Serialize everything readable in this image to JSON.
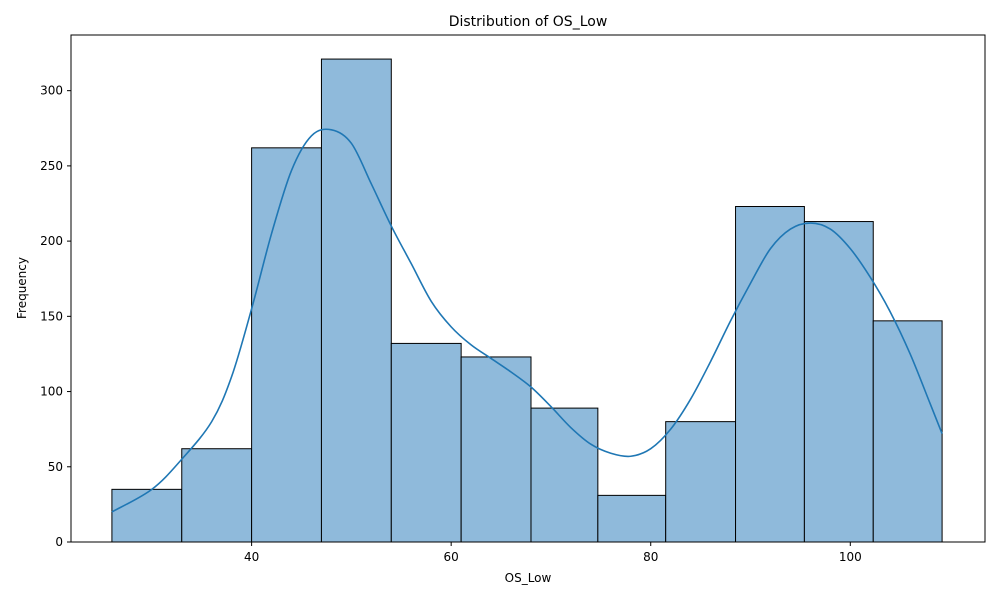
{
  "chart_data": {
    "type": "bar",
    "title": "Distribution of OS_Low",
    "xlabel": "OS_Low",
    "ylabel": "Frequency",
    "xlim": [
      21.9,
      113.5
    ],
    "ylim": [
      0,
      337
    ],
    "xticks": [
      40,
      60,
      80,
      100
    ],
    "yticks": [
      0,
      50,
      100,
      150,
      200,
      250,
      300
    ],
    "bin_edges": [
      26,
      33,
      40,
      47,
      54,
      61,
      68,
      74.7,
      81.5,
      88.5,
      95.4,
      102.3,
      109.2
    ],
    "values": [
      35,
      62,
      262,
      321,
      132,
      123,
      89,
      31,
      80,
      223,
      213,
      147
    ],
    "bar_color": "#8fbadb",
    "bar_edge_color": "#000000",
    "kde": {
      "color": "#1f77b4",
      "x": [
        26,
        30,
        33,
        36,
        38,
        40,
        42,
        44,
        46,
        48,
        50,
        52,
        54,
        56,
        58,
        60,
        62,
        64,
        66,
        68,
        70,
        72,
        74,
        76,
        78,
        80,
        82,
        84,
        86,
        88,
        90,
        92,
        94,
        96,
        98,
        100,
        102,
        104,
        106,
        108,
        109.2
      ],
      "y": [
        20,
        35,
        55,
        80,
        110,
        155,
        205,
        247,
        270,
        274,
        265,
        238,
        210,
        185,
        160,
        143,
        131,
        122,
        113,
        103,
        90,
        76,
        65,
        59,
        57,
        62,
        75,
        95,
        120,
        147,
        172,
        195,
        208,
        212,
        208,
        195,
        176,
        153,
        125,
        92,
        72
      ]
    }
  }
}
